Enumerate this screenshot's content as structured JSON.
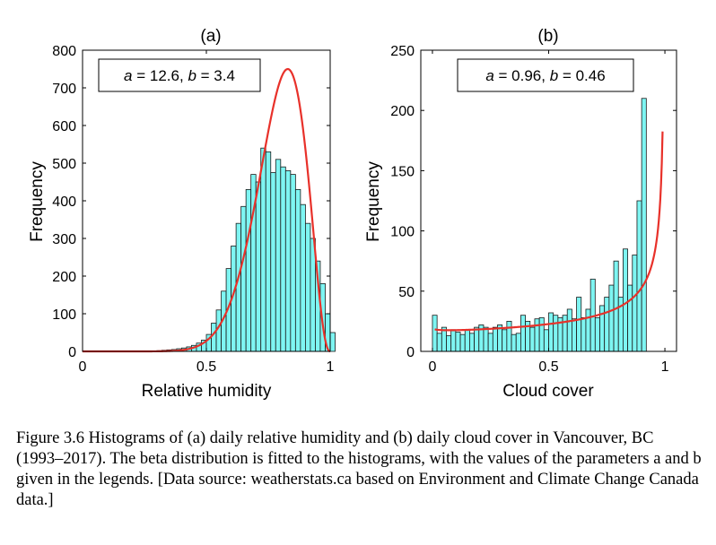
{
  "chart_data": [
    {
      "type": "histogram",
      "title": "(a)",
      "xlabel": "Relative humidity",
      "ylabel": "Frequency",
      "xlim": [
        0,
        1
      ],
      "ylim": [
        0,
        800
      ],
      "xticks": [
        "0",
        "0.5",
        "1"
      ],
      "yticks": [
        "0",
        "100",
        "200",
        "300",
        "400",
        "500",
        "600",
        "700",
        "800"
      ],
      "legend": {
        "a_label": "a",
        "a_value": "= 12.6,",
        "b_label": "b",
        "b_value": "= 3.4"
      },
      "bin_width": 0.02,
      "bins_start": 0.3,
      "counts": [
        2,
        3,
        4,
        5,
        7,
        9,
        12,
        16,
        22,
        30,
        45,
        75,
        110,
        160,
        220,
        280,
        340,
        385,
        430,
        470,
        450,
        540,
        530,
        475,
        510,
        490,
        480,
        470,
        430,
        390,
        340,
        300,
        240,
        180,
        100,
        50
      ],
      "fit": {
        "name": "beta fit",
        "a": 12.6,
        "b": 3.4,
        "peak": 750,
        "color": "#e8312a"
      },
      "bar_color": "#7ef5f2"
    },
    {
      "type": "histogram",
      "title": "(b)",
      "xlabel": "Cloud cover",
      "ylabel": "Frequency",
      "xlim": [
        -0.05,
        1.05
      ],
      "ylim": [
        0,
        250
      ],
      "xticks": [
        "0",
        "0.5",
        "1"
      ],
      "yticks": [
        "0",
        "50",
        "100",
        "150",
        "200",
        "250"
      ],
      "legend": {
        "a_label": "a",
        "a_value": "= 0.96,",
        "b_label": "b",
        "b_value": "= 0.46"
      },
      "bin_width": 0.02,
      "bins_start": 0.0,
      "counts": [
        30,
        15,
        20,
        13,
        18,
        16,
        14,
        18,
        15,
        20,
        22,
        20,
        15,
        20,
        22,
        18,
        25,
        14,
        15,
        30,
        25,
        20,
        27,
        28,
        18,
        32,
        30,
        28,
        30,
        35,
        27,
        45,
        28,
        35,
        60,
        28,
        38,
        45,
        55,
        75,
        45,
        85,
        55,
        80,
        125,
        210
      ],
      "fit": {
        "name": "beta fit",
        "a": 0.96,
        "b": 0.46,
        "color": "#e8312a"
      },
      "bar_color": "#7ef5f2"
    }
  ],
  "caption": "Figure 3.6 Histograms of (a) daily relative humidity and (b) daily cloud cover in Vancouver, BC (1993–2017). The beta distribution is fitted to the histograms, with the values of the parameters a and b given in the legends. [Data source: weatherstats.ca based on Environment and Climate Change Canada data.]"
}
